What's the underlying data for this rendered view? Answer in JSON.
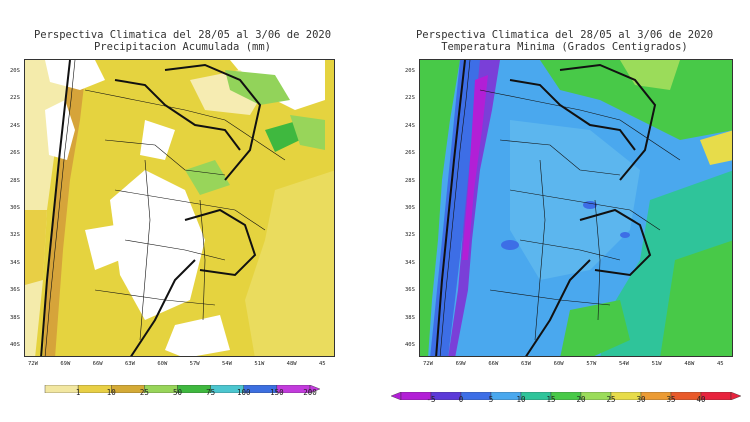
{
  "left_panel": {
    "title_line1": "Perspectiva Climatica del 28/05 al 3/06 de 2020",
    "title_line2": "Precipitacion Acumulada (mm)",
    "colorbar": {
      "labels": [
        "1",
        "10",
        "25",
        "50",
        "75",
        "100",
        "150",
        "200"
      ],
      "colors": [
        "#f2e7a1",
        "#e8cf45",
        "#d4aa36",
        "#98d55a",
        "#3fb83f",
        "#4cc6cf",
        "#3c6fe0",
        "#c23bdc"
      ]
    }
  },
  "right_panel": {
    "title_line1": "Perspectiva Climatica del 28/05 al 3/06 de 2020",
    "title_line2": "Temperatura Minima (Grados Centigrados)",
    "colorbar": {
      "labels": [
        "-5",
        "0",
        "5",
        "10",
        "15",
        "20",
        "25",
        "30",
        "35",
        "40"
      ],
      "colors": [
        "#b21fd6",
        "#5c3ad8",
        "#3d6ee6",
        "#4aa8ee",
        "#2fc49a",
        "#48c948",
        "#9bdc5a",
        "#e7dc4a",
        "#eb9b34",
        "#e85a2a",
        "#e7233d"
      ]
    }
  },
  "map": {
    "lat_ticks": [
      "20S",
      "22S",
      "24S",
      "26S",
      "28S",
      "30S",
      "32S",
      "34S",
      "36S",
      "38S",
      "40S"
    ],
    "lon_ticks": [
      "72W",
      "69W",
      "66W",
      "63W",
      "60W",
      "57W",
      "54W",
      "51W",
      "48W",
      "45"
    ]
  }
}
